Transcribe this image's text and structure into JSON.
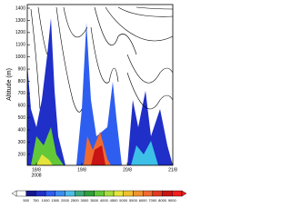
{
  "chart_data": {
    "type": "contour",
    "y_label": "Altitude (m)",
    "ylim": [
      110,
      1430
    ],
    "yticks": [
      200,
      300,
      400,
      500,
      600,
      700,
      800,
      900,
      1000,
      1100,
      1200,
      1300,
      1400
    ],
    "xlim": [
      17.8,
      21.0
    ],
    "xticks": [
      {
        "value": 18,
        "label": "18/8"
      },
      {
        "value": 19,
        "label": "19/8"
      },
      {
        "value": 20,
        "label": "20/8"
      },
      {
        "value": 21,
        "label": "21/8"
      }
    ],
    "x_sublabel": "2008",
    "colorbar": {
      "levels": [
        500,
        750,
        1000,
        1500,
        2000,
        2500,
        3000,
        3500,
        4000,
        4500,
        5000,
        5500,
        6000,
        7000,
        8000,
        9000
      ],
      "colors": [
        "#ffffff",
        "#16168c",
        "#1f2fc8",
        "#2e5ef0",
        "#3c8cf0",
        "#4cbce8",
        "#3ca87c",
        "#2f9e3c",
        "#62c83a",
        "#a6dc3c",
        "#e4e43c",
        "#f0c030",
        "#f09430",
        "#f06a30",
        "#e03a22",
        "#c81414",
        "#f01e1e"
      ]
    }
  }
}
